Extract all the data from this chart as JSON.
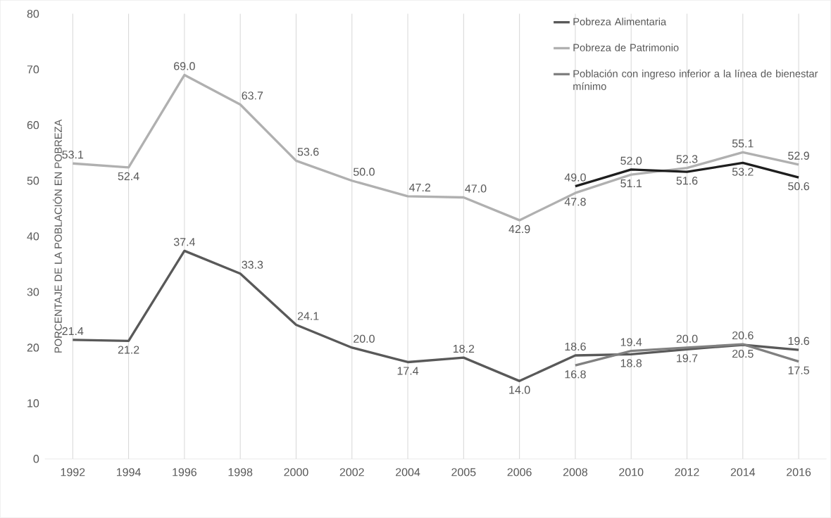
{
  "chart_data": {
    "type": "line",
    "ylabel": "PORCENTAJE DE LA POBLACIÓN EN POBREZA",
    "categories": [
      "1992",
      "1994",
      "1996",
      "1998",
      "2000",
      "2002",
      "2004",
      "2005",
      "2006",
      "2008",
      "2010",
      "2012",
      "2014",
      "2016"
    ],
    "series": [
      {
        "name": "Pobreza Alimentaria",
        "color": "#595959",
        "values": [
          21.4,
          21.2,
          37.4,
          33.3,
          24.1,
          20.0,
          17.4,
          18.2,
          14.0,
          18.6,
          18.8,
          19.7,
          20.5,
          19.6
        ],
        "value_labels": [
          "21.4",
          "21.2",
          "37.4",
          "33.3",
          "24.1",
          "20.0",
          "17.4",
          "18.2",
          "14.0",
          "18.6",
          "18.8",
          "19.7",
          "20.5",
          "19.6"
        ]
      },
      {
        "name": "Pobreza de Patrimonio",
        "color": "#b0b0b0",
        "values": [
          53.1,
          52.4,
          69.0,
          63.7,
          53.6,
          50.0,
          47.2,
          47.0,
          42.9,
          47.8,
          51.1,
          52.3,
          55.1,
          52.9
        ],
        "value_labels": [
          "53.1",
          "52.4",
          "69.0",
          "63.7",
          "53.6",
          "50.0",
          "47.2",
          "47.0",
          "42.9",
          "47.8",
          "51.1",
          "52.3",
          "55.1",
          "52.9"
        ]
      },
      {
        "name": "Población con ingreso inferior a la línea de bienestar mínimo",
        "color": "#808080",
        "values": [
          null,
          null,
          null,
          null,
          null,
          null,
          null,
          null,
          null,
          16.8,
          19.4,
          20.0,
          20.6,
          17.5
        ],
        "value_labels": [
          null,
          null,
          null,
          null,
          null,
          null,
          null,
          null,
          null,
          "16.8",
          "19.4",
          "20.0",
          "20.6",
          "17.5"
        ]
      },
      {
        "color": "#1e1e1e",
        "values": [
          null,
          null,
          null,
          null,
          null,
          null,
          null,
          null,
          null,
          49.0,
          52.0,
          51.6,
          53.2,
          50.6
        ],
        "value_labels": [
          null,
          null,
          null,
          null,
          null,
          null,
          null,
          null,
          null,
          "49.0",
          "52.0",
          "51.6",
          "53.2",
          "50.6"
        ]
      }
    ],
    "ylim": [
      0,
      80
    ],
    "yticks": [
      0,
      10,
      20,
      30,
      40,
      50,
      60,
      70,
      80
    ],
    "grid": "x",
    "legend": "top right"
  }
}
